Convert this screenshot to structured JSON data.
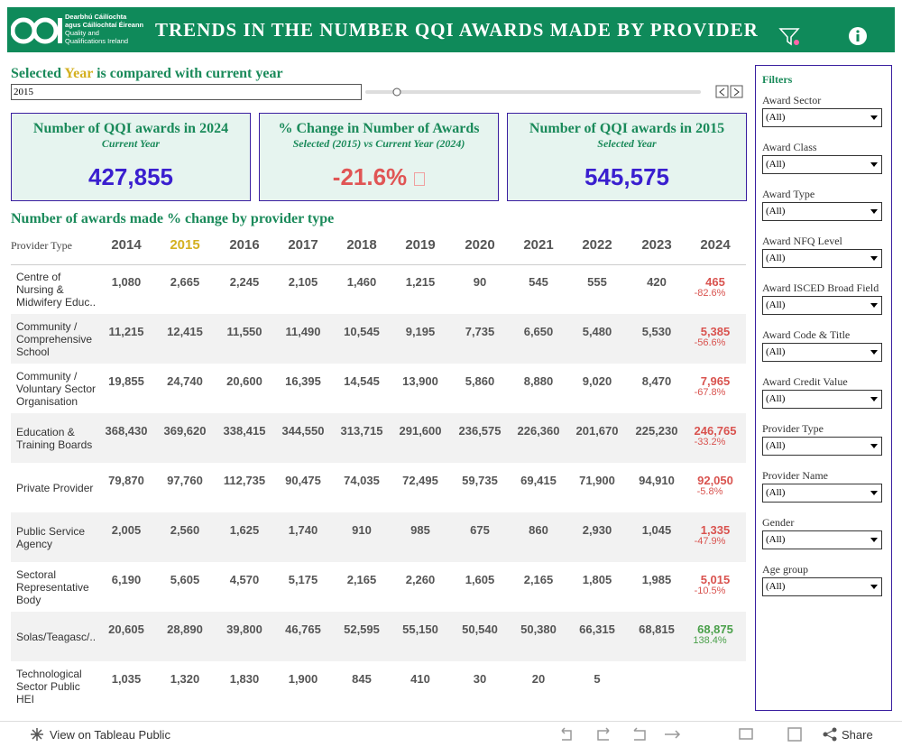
{
  "header": {
    "logo_lines": [
      "Dearbhú Cáilíochta",
      "agus Cáilíochtaí Éireann",
      "Quality and",
      "Qualifications Ireland"
    ],
    "title": "TRENDS IN THE NUMBER QQI AWARDS MADE BY PROVIDER"
  },
  "selector": {
    "prefix": "Selected",
    "highlight": "Year",
    "suffix": "is compared with current year",
    "value": "2015"
  },
  "kpis": [
    {
      "title": "Number of QQI awards in 2024",
      "subtitle": "Current Year",
      "value": "427,855",
      "color": "#3a1fcf"
    },
    {
      "title": "% Change in Number of Awards",
      "subtitle": "Selected (2015) vs Current Year (2024)",
      "value": "-21.6%",
      "color": "#e05555"
    },
    {
      "title": "Number of QQI awards in 2015",
      "subtitle": "Selected Year",
      "value": "545,575",
      "color": "#3a1fcf"
    }
  ],
  "table": {
    "title": "Number of awards made % change by provider type",
    "header": [
      "Provider Type",
      "2014",
      "2015",
      "2016",
      "2017",
      "2018",
      "2019",
      "2020",
      "2021",
      "2022",
      "2023",
      "2024"
    ],
    "rows": [
      {
        "name": "Centre of Nursing & Midwifery Educ..",
        "values": [
          "1,080",
          "2,665",
          "2,245",
          "2,105",
          "1,460",
          "1,215",
          "90",
          "545",
          "555",
          "420",
          "465"
        ],
        "change": "-82.6%",
        "color": "#d9534f"
      },
      {
        "name": "Community / Comprehensive School",
        "values": [
          "11,215",
          "12,415",
          "11,550",
          "11,490",
          "10,545",
          "9,195",
          "7,735",
          "6,650",
          "5,480",
          "5,530",
          "5,385"
        ],
        "change": "-56.6%",
        "color": "#d9534f"
      },
      {
        "name": "Community / Voluntary Sector Organisation",
        "values": [
          "19,855",
          "24,740",
          "20,600",
          "16,395",
          "14,545",
          "13,900",
          "5,860",
          "8,880",
          "9,020",
          "8,470",
          "7,965"
        ],
        "change": "-67.8%",
        "color": "#d9534f"
      },
      {
        "name": "Education & Training Boards",
        "values": [
          "368,430",
          "369,620",
          "338,415",
          "344,550",
          "313,715",
          "291,600",
          "236,575",
          "226,360",
          "201,670",
          "225,230",
          "246,765"
        ],
        "change": "-33.2%",
        "color": "#d9534f"
      },
      {
        "name": "Private Provider",
        "values": [
          "79,870",
          "97,760",
          "112,735",
          "90,475",
          "74,035",
          "72,495",
          "59,735",
          "69,415",
          "71,900",
          "94,910",
          "92,050"
        ],
        "change": "-5.8%",
        "color": "#d9534f"
      },
      {
        "name": "Public Service Agency",
        "values": [
          "2,005",
          "2,560",
          "1,625",
          "1,740",
          "910",
          "985",
          "675",
          "860",
          "2,930",
          "1,045",
          "1,335"
        ],
        "change": "-47.9%",
        "color": "#d9534f"
      },
      {
        "name": "Sectoral Representative Body",
        "values": [
          "6,190",
          "5,605",
          "4,570",
          "5,175",
          "2,165",
          "2,260",
          "1,605",
          "2,165",
          "1,805",
          "1,985",
          "5,015"
        ],
        "change": "-10.5%",
        "color": "#d9534f"
      },
      {
        "name": "Solas/Teagasc/..",
        "values": [
          "20,605",
          "28,890",
          "39,800",
          "46,765",
          "52,595",
          "55,150",
          "50,540",
          "50,380",
          "66,315",
          "68,815",
          "68,875"
        ],
        "change": "138.4%",
        "color": "#4aa04a"
      },
      {
        "name": "Technological Sector Public HEI",
        "values": [
          "1,035",
          "1,320",
          "1,830",
          "1,900",
          "845",
          "410",
          "30",
          "20",
          "5",
          null,
          null
        ],
        "change": null,
        "color": "#d9534f"
      }
    ]
  },
  "filters": {
    "title": "Filters",
    "items": [
      {
        "label": "Award Sector",
        "value": "(All)"
      },
      {
        "label": "Award Class",
        "value": "(All)"
      },
      {
        "label": "Award Type",
        "value": "(All)"
      },
      {
        "label": "Award NFQ Level",
        "value": "(All)"
      },
      {
        "label": "Award ISCED Broad Field",
        "value": "(All)"
      },
      {
        "label": "Award Code & Title",
        "value": "(All)"
      },
      {
        "label": "Award Credit Value",
        "value": "(All)"
      },
      {
        "label": "Provider Type",
        "value": "(All)"
      },
      {
        "label": "Provider Name",
        "value": "(All)"
      },
      {
        "label": "Gender",
        "value": "(All)"
      },
      {
        "label": "Age group",
        "value": "(All)"
      }
    ]
  },
  "footer": {
    "link": "View on Tableau Public",
    "share": "Share"
  }
}
